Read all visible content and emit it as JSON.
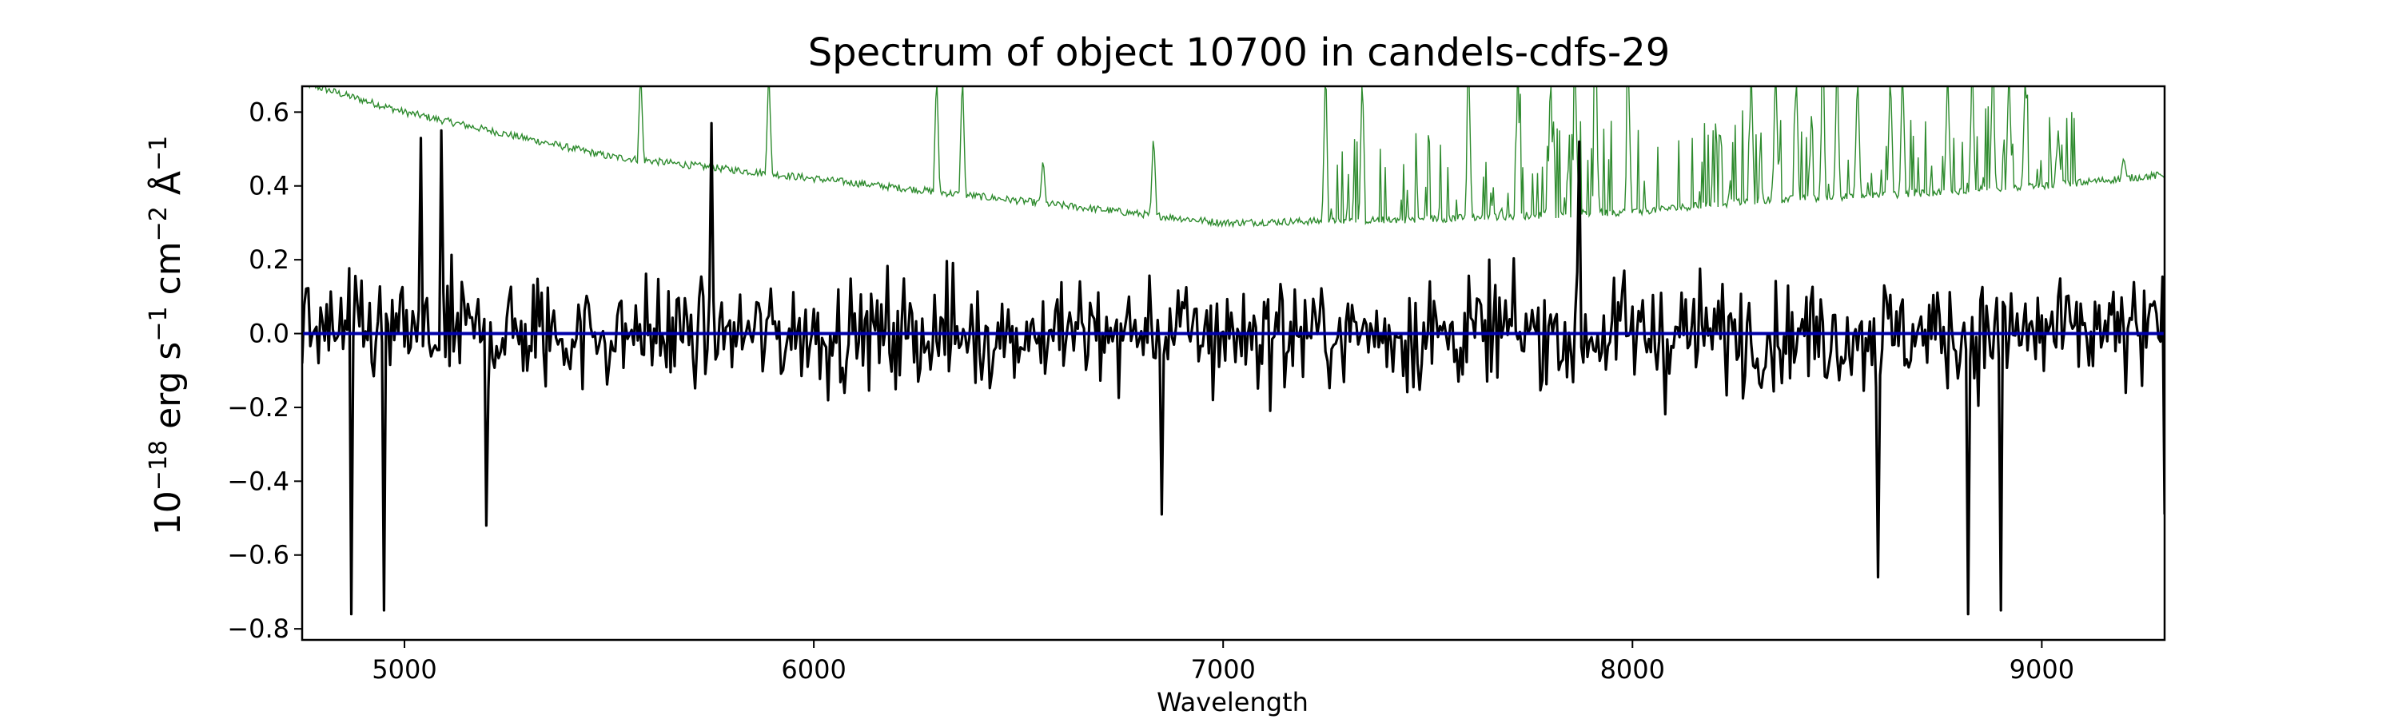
{
  "chart_data": {
    "type": "line",
    "title": "Spectrum of object 10700 in candels-cdfs-29",
    "xlabel": "Wavelength",
    "ylabel_parts": [
      "10",
      "−18",
      " erg s",
      "−1",
      " cm",
      "−2",
      " Å",
      "−1"
    ],
    "xlim": [
      4750,
      9300
    ],
    "ylim": [
      -0.83,
      0.67
    ],
    "x_ticks": [
      5000,
      6000,
      7000,
      8000,
      9000
    ],
    "y_ticks": [
      0.6,
      0.4,
      0.2,
      0.0,
      -0.2,
      -0.4,
      -0.6,
      -0.8
    ],
    "x_tick_labels": [
      "5000",
      "6000",
      "7000",
      "8000",
      "9000"
    ],
    "y_tick_labels": [
      "0.6",
      "0.4",
      "0.2",
      "0.0",
      "−0.2",
      "−0.4",
      "−0.6",
      "−0.8"
    ],
    "grid": false,
    "series": [
      {
        "role": "flux",
        "color": "#000000",
        "x_start": 4750,
        "x_step": 5,
        "noise_sigma": 0.19,
        "extremes": [
          [
            4870,
            -0.76
          ],
          [
            4950,
            -0.75
          ],
          [
            5040,
            0.53
          ],
          [
            5090,
            0.55
          ],
          [
            5200,
            -0.52
          ],
          [
            5750,
            0.57
          ],
          [
            6850,
            -0.49
          ],
          [
            7870,
            0.52
          ],
          [
            8600,
            -0.66
          ],
          [
            8820,
            -0.76
          ],
          [
            8900,
            -0.75
          ],
          [
            9300,
            -0.49
          ]
        ]
      },
      {
        "role": "error",
        "color": "#2e8b2e",
        "baseline": [
          [
            4750,
            0.68
          ],
          [
            5000,
            0.6
          ],
          [
            5500,
            0.48
          ],
          [
            6000,
            0.42
          ],
          [
            6500,
            0.36
          ],
          [
            7000,
            0.3
          ],
          [
            7500,
            0.31
          ],
          [
            8000,
            0.33
          ],
          [
            8300,
            0.36
          ],
          [
            8700,
            0.38
          ],
          [
            9000,
            0.4
          ],
          [
            9300,
            0.43
          ]
        ],
        "spikes": [
          [
            5200,
            0.52
          ],
          [
            5577,
            0.72
          ],
          [
            5890,
            0.72
          ],
          [
            6300,
            0.72
          ],
          [
            6363,
            0.72
          ],
          [
            6560,
            0.48
          ],
          [
            6830,
            0.55
          ],
          [
            7250,
            0.72
          ],
          [
            7340,
            0.72
          ],
          [
            7600,
            0.72
          ],
          [
            7720,
            0.72
          ],
          [
            7800,
            0.72
          ],
          [
            7860,
            0.72
          ],
          [
            7910,
            0.72
          ],
          [
            7990,
            0.72
          ],
          [
            8290,
            0.72
          ],
          [
            8350,
            0.72
          ],
          [
            8400,
            0.72
          ],
          [
            8465,
            0.72
          ],
          [
            8500,
            0.72
          ],
          [
            8550,
            0.72
          ],
          [
            8630,
            0.72
          ],
          [
            8660,
            0.72
          ],
          [
            8770,
            0.72
          ],
          [
            8830,
            0.72
          ],
          [
            8880,
            0.72
          ],
          [
            8920,
            0.72
          ],
          [
            8960,
            0.72
          ],
          [
            9040,
            0.55
          ],
          [
            9200,
            0.48
          ]
        ]
      },
      {
        "role": "model",
        "color": "#0000aa",
        "x": [
          4750,
          9300
        ],
        "y": [
          0.0,
          0.0
        ]
      }
    ]
  }
}
